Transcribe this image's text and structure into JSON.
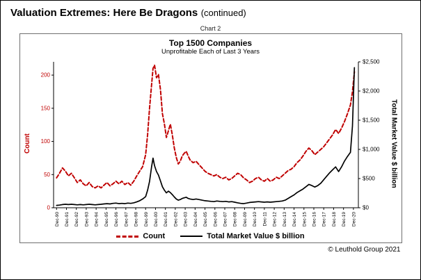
{
  "header": {
    "title_bold": "Valuation Extremes: Here Be Dragons",
    "title_suffix": "(continued)"
  },
  "chart_label": "Chart 2",
  "copyright": "© Leuthold Group 2021",
  "chart_data": {
    "type": "line",
    "title": "Top 1500 Companies",
    "subtitle": "Unprofitable Each of Last 3 Years",
    "legend_position": "bottom",
    "grid": false,
    "left_axis": {
      "label": "Count",
      "color": "#c00000",
      "min": 0,
      "max": 220,
      "ticks": [
        0,
        50,
        100,
        150,
        200
      ]
    },
    "right_axis": {
      "label": "Total Market Value $ billion",
      "color": "#000000",
      "min": 0,
      "max": 2500,
      "tick_labels": [
        "$0",
        "$500",
        "$1,000",
        "$1,500",
        "$2,000",
        "$2,500"
      ],
      "tick_values": [
        0,
        500,
        1000,
        1500,
        2000,
        2500
      ]
    },
    "x_tick_labels": [
      "Dec-90",
      "Dec-91",
      "Dec-92",
      "Dec-93",
      "Dec-94",
      "Dec-95",
      "Dec-96",
      "Dec-97",
      "Dec-98",
      "Dec-99",
      "Dec-00",
      "Dec-01",
      "Dec-02",
      "Dec-03",
      "Dec-04",
      "Dec-05",
      "Dec-06",
      "Dec-07",
      "Dec-08",
      "Dec-09",
      "Dec-10",
      "Dec-11",
      "Dec-12",
      "Dec-13",
      "Dec-14",
      "Dec-15",
      "Dec-16",
      "Dec-17",
      "Dec-18",
      "Dec-19",
      "Dec-20"
    ],
    "x_range": [
      -0.3,
      30.5
    ],
    "x": [
      0,
      0.3,
      0.6,
      0.9,
      1.2,
      1.5,
      1.8,
      2.1,
      2.4,
      2.7,
      3,
      3.3,
      3.6,
      3.9,
      4.2,
      4.5,
      4.8,
      5.1,
      5.4,
      5.7,
      6,
      6.3,
      6.6,
      6.9,
      7.2,
      7.5,
      7.8,
      8.1,
      8.4,
      8.7,
      9,
      9.2,
      9.4,
      9.6,
      9.75,
      9.9,
      10.1,
      10.3,
      10.5,
      10.7,
      10.9,
      11.1,
      11.3,
      11.5,
      11.7,
      11.9,
      12.1,
      12.3,
      12.5,
      12.7,
      12.9,
      13.1,
      13.3,
      13.5,
      13.8,
      14.1,
      14.4,
      14.7,
      15,
      15.3,
      15.6,
      15.9,
      16.2,
      16.5,
      16.8,
      17.1,
      17.4,
      17.7,
      18,
      18.3,
      18.6,
      18.9,
      19.2,
      19.5,
      19.8,
      20.1,
      20.4,
      20.7,
      21,
      21.3,
      21.6,
      21.9,
      22.2,
      22.5,
      22.8,
      23.1,
      23.4,
      23.7,
      24,
      24.3,
      24.6,
      24.9,
      25.2,
      25.5,
      25.8,
      26.1,
      26.4,
      26.7,
      27,
      27.3,
      27.6,
      27.9,
      28.2,
      28.5,
      28.8,
      29.1,
      29.4,
      29.7,
      29.9,
      30.1
    ],
    "series": [
      {
        "name": "Count",
        "axis": "left",
        "color": "#c00000",
        "dash": true,
        "values": [
          45,
          52,
          60,
          55,
          48,
          52,
          45,
          38,
          42,
          36,
          33,
          38,
          32,
          30,
          33,
          30,
          34,
          38,
          33,
          36,
          40,
          36,
          40,
          35,
          38,
          34,
          40,
          48,
          55,
          62,
          80,
          110,
          150,
          185,
          210,
          215,
          196,
          201,
          178,
          142,
          126,
          106,
          116,
          126,
          110,
          90,
          76,
          66,
          70,
          78,
          82,
          85,
          78,
          72,
          68,
          70,
          65,
          60,
          55,
          52,
          50,
          48,
          50,
          46,
          44,
          46,
          42,
          44,
          48,
          52,
          50,
          45,
          42,
          38,
          40,
          44,
          46,
          42,
          40,
          44,
          40,
          42,
          46,
          44,
          48,
          52,
          56,
          58,
          62,
          68,
          72,
          78,
          85,
          90,
          86,
          80,
          84,
          88,
          92,
          98,
          104,
          110,
          118,
          112,
          120,
          130,
          142,
          155,
          175,
          205
        ]
      },
      {
        "name": "Total Market Value $ billion",
        "axis": "right",
        "color": "#000000",
        "dash": false,
        "values": [
          40,
          45,
          55,
          60,
          55,
          60,
          55,
          50,
          55,
          50,
          55,
          60,
          55,
          50,
          55,
          60,
          65,
          70,
          65,
          75,
          80,
          70,
          75,
          70,
          80,
          75,
          85,
          100,
          120,
          150,
          190,
          300,
          450,
          700,
          850,
          720,
          620,
          560,
          460,
          360,
          300,
          255,
          285,
          260,
          225,
          185,
          150,
          130,
          140,
          160,
          170,
          180,
          160,
          150,
          140,
          150,
          140,
          130,
          120,
          115,
          110,
          105,
          115,
          110,
          105,
          110,
          100,
          105,
          95,
          85,
          75,
          70,
          80,
          90,
          95,
          100,
          105,
          100,
          95,
          100,
          95,
          100,
          105,
          110,
          115,
          130,
          160,
          190,
          220,
          260,
          290,
          320,
          360,
          400,
          380,
          355,
          380,
          420,
          480,
          540,
          600,
          650,
          700,
          620,
          700,
          800,
          880,
          950,
          1400,
          2400
        ]
      }
    ]
  }
}
